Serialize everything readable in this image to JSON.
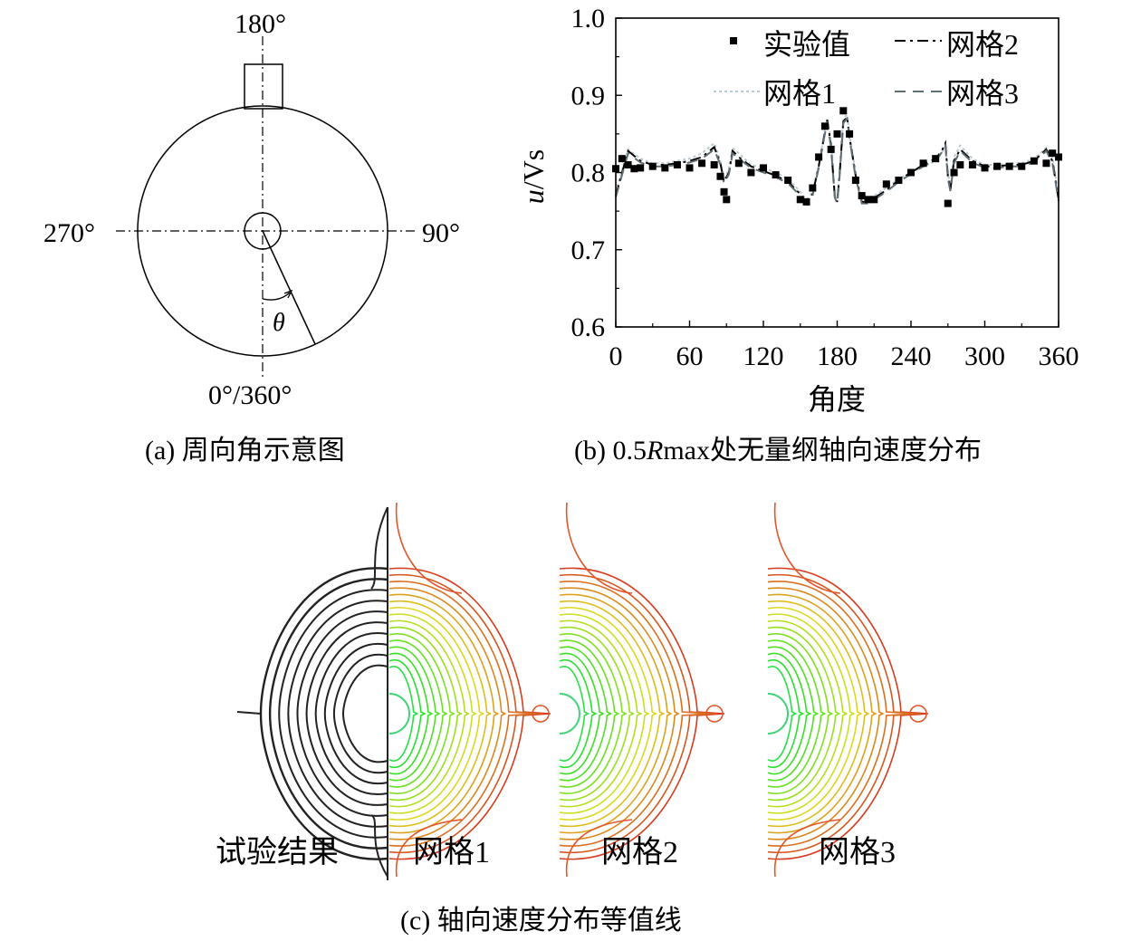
{
  "panel_a": {
    "caption": "(a) 周向角示意图",
    "label_top": "180°",
    "label_left": "270°",
    "label_right": "90°",
    "label_bottom": "0°/360°",
    "theta_symbol": "θ"
  },
  "panel_b": {
    "caption_prefix": "(b) 0.5",
    "caption_italic": "R",
    "caption_suffix": "max处无量纲轴向速度分布",
    "ylabel_italic": "u",
    "ylabel_rest": "/Vs",
    "xlabel": "角度",
    "legend": {
      "exp": "实验值",
      "grid1": "网格1",
      "grid2": "网格2",
      "grid3": "网格3"
    }
  },
  "panel_c": {
    "caption": "(c) 轴向速度分布等值线",
    "labels": [
      "试验结果",
      "网格1",
      "网格2",
      "网格3"
    ]
  },
  "chart_data": {
    "type": "line",
    "xlabel": "角度",
    "ylabel": "u/Vs",
    "xlim": [
      0,
      360
    ],
    "ylim": [
      0.6,
      1.0
    ],
    "xticks": [
      0,
      60,
      120,
      180,
      240,
      300,
      360
    ],
    "yticks": [
      0.6,
      0.7,
      0.8,
      0.9,
      1.0
    ],
    "legend_position": "top-right",
    "x": [
      0,
      10,
      20,
      30,
      40,
      50,
      60,
      70,
      80,
      85,
      88,
      92,
      95,
      100,
      110,
      120,
      130,
      140,
      150,
      155,
      160,
      165,
      170,
      172,
      175,
      178,
      180,
      182,
      185,
      188,
      190,
      195,
      200,
      205,
      210,
      220,
      230,
      240,
      250,
      260,
      265,
      268,
      270,
      272,
      275,
      280,
      290,
      300,
      310,
      320,
      330,
      340,
      350,
      355,
      360
    ],
    "series": [
      {
        "name": "网格1",
        "style": "dotted",
        "color": "#b9c9cf",
        "values": [
          0.775,
          0.83,
          0.818,
          0.812,
          0.812,
          0.815,
          0.818,
          0.825,
          0.838,
          0.815,
          0.79,
          0.805,
          0.832,
          0.825,
          0.81,
          0.806,
          0.8,
          0.792,
          0.775,
          0.765,
          0.775,
          0.81,
          0.855,
          0.87,
          0.84,
          0.775,
          0.765,
          0.8,
          0.87,
          0.875,
          0.85,
          0.8,
          0.765,
          0.765,
          0.77,
          0.78,
          0.792,
          0.8,
          0.808,
          0.815,
          0.825,
          0.835,
          0.8,
          0.78,
          0.82,
          0.835,
          0.818,
          0.81,
          0.81,
          0.812,
          0.812,
          0.818,
          0.832,
          0.82,
          0.77
        ]
      },
      {
        "name": "网格2",
        "style": "dashdot",
        "color": "#000000",
        "values": [
          0.77,
          0.828,
          0.815,
          0.81,
          0.81,
          0.812,
          0.815,
          0.82,
          0.833,
          0.812,
          0.788,
          0.8,
          0.828,
          0.82,
          0.808,
          0.802,
          0.796,
          0.788,
          0.772,
          0.762,
          0.772,
          0.808,
          0.852,
          0.868,
          0.835,
          0.77,
          0.762,
          0.798,
          0.866,
          0.872,
          0.846,
          0.796,
          0.762,
          0.762,
          0.767,
          0.777,
          0.79,
          0.8,
          0.81,
          0.818,
          0.828,
          0.838,
          0.795,
          0.778,
          0.815,
          0.83,
          0.815,
          0.808,
          0.808,
          0.81,
          0.81,
          0.815,
          0.83,
          0.815,
          0.765
        ]
      },
      {
        "name": "网格3",
        "style": "dashed",
        "color": "#5f6e73",
        "values": [
          0.768,
          0.825,
          0.813,
          0.808,
          0.808,
          0.81,
          0.813,
          0.818,
          0.83,
          0.81,
          0.786,
          0.798,
          0.825,
          0.818,
          0.806,
          0.8,
          0.794,
          0.786,
          0.77,
          0.76,
          0.77,
          0.806,
          0.85,
          0.866,
          0.832,
          0.768,
          0.76,
          0.796,
          0.864,
          0.87,
          0.844,
          0.794,
          0.76,
          0.76,
          0.765,
          0.775,
          0.788,
          0.798,
          0.808,
          0.816,
          0.826,
          0.835,
          0.792,
          0.776,
          0.812,
          0.828,
          0.813,
          0.806,
          0.806,
          0.808,
          0.808,
          0.813,
          0.828,
          0.812,
          0.763
        ]
      }
    ],
    "scatter": {
      "name": "实验值",
      "x": [
        0,
        5,
        10,
        15,
        20,
        30,
        40,
        50,
        60,
        70,
        80,
        85,
        88,
        90,
        100,
        110,
        120,
        130,
        140,
        150,
        155,
        160,
        165,
        170,
        175,
        180,
        185,
        190,
        195,
        200,
        205,
        210,
        220,
        230,
        240,
        250,
        260,
        270,
        275,
        280,
        290,
        300,
        310,
        320,
        330,
        340,
        350,
        355,
        360
      ],
      "y": [
        0.805,
        0.818,
        0.81,
        0.805,
        0.806,
        0.808,
        0.806,
        0.81,
        0.806,
        0.812,
        0.81,
        0.795,
        0.775,
        0.765,
        0.812,
        0.8,
        0.806,
        0.797,
        0.79,
        0.765,
        0.762,
        0.78,
        0.82,
        0.86,
        0.83,
        0.85,
        0.88,
        0.85,
        0.79,
        0.77,
        0.765,
        0.765,
        0.785,
        0.79,
        0.8,
        0.812,
        0.818,
        0.76,
        0.8,
        0.81,
        0.81,
        0.806,
        0.808,
        0.808,
        0.808,
        0.815,
        0.812,
        0.825,
        0.82
      ]
    }
  }
}
